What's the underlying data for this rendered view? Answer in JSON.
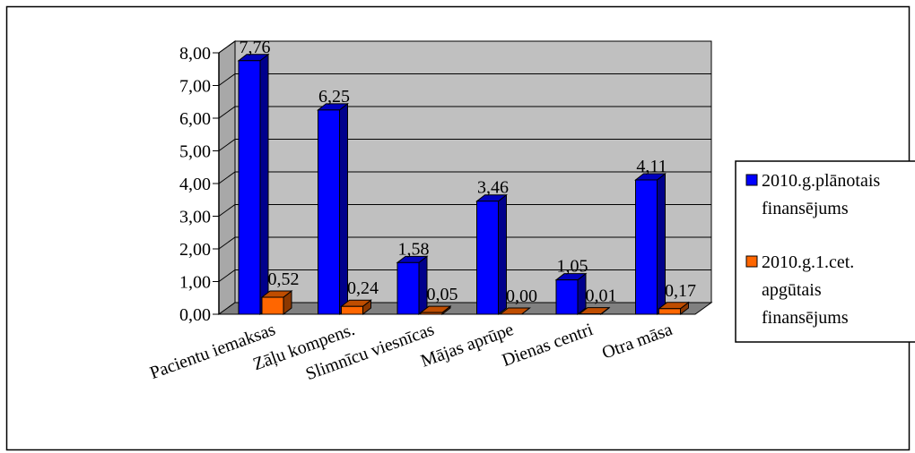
{
  "chart_data": {
    "type": "bar",
    "title": "",
    "xlabel": "",
    "ylabel": "",
    "ylim": [
      0,
      8
    ],
    "y_ticks": [
      "0,00",
      "1,00",
      "2,00",
      "3,00",
      "4,00",
      "5,00",
      "6,00",
      "7,00",
      "8,00"
    ],
    "categories": [
      "Pacientu iemaksas",
      "Zāļu kompens.",
      "Slimnīcu viesnīcas",
      "Mājas aprūpe",
      "Dienas centri",
      "Otra māsa"
    ],
    "series": [
      {
        "name": "2010.g.plānotais finansējums",
        "name_lines": [
          "2010.g.plānotais",
          "finansējums"
        ],
        "values": [
          7.76,
          6.25,
          1.58,
          3.46,
          1.05,
          4.11
        ],
        "labels": [
          "7,76",
          "6,25",
          "1,58",
          "3,46",
          "1,05",
          "4,11"
        ],
        "color": "#0000ff"
      },
      {
        "name": "2010.g.1.cet. apgūtais finansējums",
        "name_lines": [
          "2010.g.1.cet.",
          "apgūtais",
          "finansējums"
        ],
        "values": [
          0.52,
          0.24,
          0.05,
          0.0,
          0.01,
          0.17
        ],
        "labels": [
          "0,52",
          "0,24",
          "0,05",
          "0,00",
          "0,01",
          "0,17"
        ],
        "color": "#ff6600"
      }
    ],
    "grid": true,
    "three_d": true,
    "legend_position": "right",
    "background": "#c0c0c0"
  }
}
